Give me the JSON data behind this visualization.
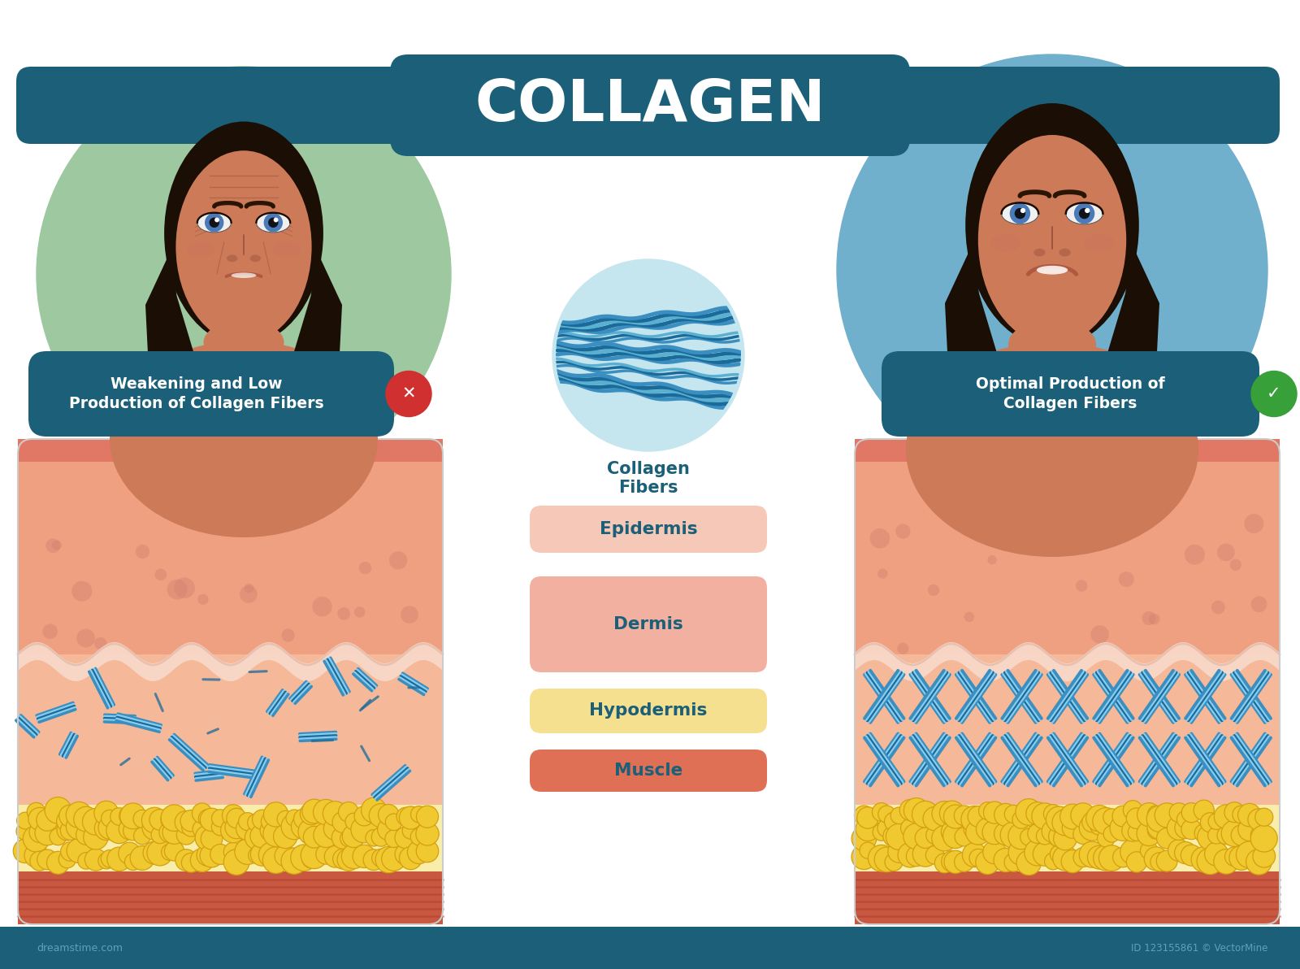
{
  "title": "COLLAGEN",
  "title_bg_color": "#1b6078",
  "title_text_color": "#ffffff",
  "background_color": "#ffffff",
  "left_label": "Weakening and Low\nProduction of Collagen Fibers",
  "right_label": "Optimal Production of\nCollagen Fibers",
  "label_bg_color": "#1b6078",
  "label_text_color": "#ffffff",
  "center_label": "Collagen\nFibers",
  "center_text_color": "#1b6078",
  "center_circle_color": "#c5e5ef",
  "layers": [
    {
      "name": "Epidermis",
      "color": "#f5c8b8",
      "text_color": "#1b6078"
    },
    {
      "name": "Dermis",
      "color": "#f2b0a0",
      "text_color": "#1b6078"
    },
    {
      "name": "Hypodermis",
      "color": "#f5e090",
      "text_color": "#1b6078"
    },
    {
      "name": "Muscle",
      "color": "#e07055",
      "text_color": "#1b6078"
    }
  ],
  "skin_top_color": "#e07865",
  "skin_epi_color": "#efa080",
  "skin_dermis_color": "#f5b898",
  "hypodermis_bg_color": "#f8eeaa",
  "fat_cell_color": "#f0c830",
  "fat_cell_border": "#d4a010",
  "muscle_color": "#c85840",
  "muscle_stripe_color": "#b04030",
  "fiber_color1": "#3a8fc0",
  "fiber_color2": "#1a6a9a",
  "fiber_color3": "#5ab0d0",
  "fiber_stripe": "#88ccee",
  "wave_color": "#f8d8c8",
  "wave_border": "#e8c0b0",
  "left_bg_color": "#9ec8a0",
  "right_bg_color": "#70b0cc",
  "face_skin": "#cc7a58",
  "face_skin_light": "#d98860",
  "face_hair": "#1a0e05",
  "face_eye_white": "#f0f0f0",
  "face_eye_iris": "#4a7ab8",
  "face_eye_pupil": "#111118",
  "face_lip": "#b05840",
  "x_icon_color": "#d03030",
  "check_icon_color": "#38a038",
  "bottom_bar_color": "#1b6078",
  "bottom_text_color": "#78b8cc"
}
